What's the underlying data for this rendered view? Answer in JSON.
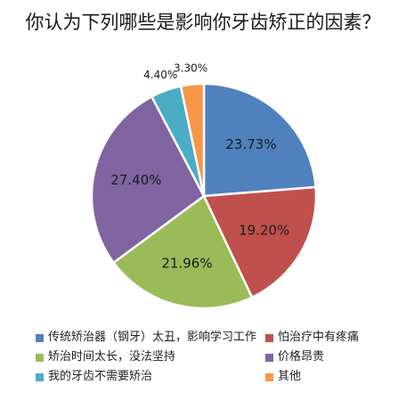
{
  "chart_data": {
    "type": "pie",
    "title": "你认为下列哪些是影响你牙齿矫正的因素？",
    "categories": [
      "传统矫治器（钢牙）太丑，影响学习工作",
      "怕治疗中有疼痛",
      "矫治时间太长，没法坚持",
      "价格昂贵",
      "我的牙齿不需要矫治",
      "其他"
    ],
    "values": [
      23.73,
      19.2,
      21.96,
      27.4,
      4.4,
      3.3
    ],
    "value_labels": [
      "23.73%",
      "19.20%",
      "21.96%",
      "27.40%",
      "4.40%",
      "3.30%"
    ],
    "colors": [
      "#4f81bd",
      "#c0504d",
      "#9bbb59",
      "#8064a2",
      "#4bacc6",
      "#f79646"
    ],
    "start": "12 o'clock, clockwise",
    "legend_position": "bottom",
    "legend_columns": 2
  }
}
